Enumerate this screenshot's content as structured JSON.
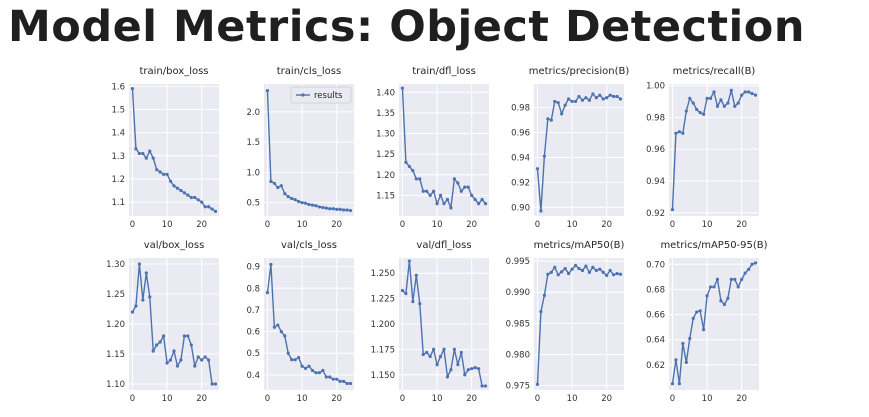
{
  "page": {
    "title": "Model Metrics: Object Detection"
  },
  "style": {
    "line_color": "#4c72b0",
    "panel_bg": "#eaeaf2",
    "grid_color": "#ffffff"
  },
  "legend": {
    "label": "results",
    "location": "upper right",
    "panel": "train/cls_loss"
  },
  "chart_data": [
    {
      "type": "line",
      "title": "train/box_loss",
      "xlim": [
        -1,
        25
      ],
      "ylim": [
        1.04,
        1.61
      ],
      "xticks": [
        0,
        10,
        20
      ],
      "yticks": [
        1.1,
        1.2,
        1.3,
        1.4,
        1.5,
        1.6
      ],
      "xtick_labels": [
        "0",
        "10",
        "20"
      ],
      "ytick_labels": [
        "1.1",
        "1.2",
        "1.3",
        "1.4",
        "1.5",
        "1.6"
      ],
      "x": [
        0,
        1,
        2,
        3,
        4,
        5,
        6,
        7,
        8,
        9,
        10,
        11,
        12,
        13,
        14,
        15,
        16,
        17,
        18,
        19,
        20,
        21,
        22,
        23,
        24
      ],
      "y": [
        1.59,
        1.33,
        1.31,
        1.31,
        1.29,
        1.32,
        1.29,
        1.24,
        1.23,
        1.22,
        1.22,
        1.19,
        1.17,
        1.16,
        1.15,
        1.14,
        1.13,
        1.12,
        1.12,
        1.11,
        1.1,
        1.08,
        1.08,
        1.07,
        1.06
      ]
    },
    {
      "type": "line",
      "title": "train/cls_loss",
      "xlim": [
        -1,
        25
      ],
      "ylim": [
        0.28,
        2.46
      ],
      "xticks": [
        0,
        10,
        20
      ],
      "yticks": [
        0.5,
        1.0,
        1.5,
        2.0
      ],
      "xtick_labels": [
        "0",
        "10",
        "20"
      ],
      "ytick_labels": [
        "0.5",
        "1.0",
        "1.5",
        "2.0"
      ],
      "x": [
        0,
        1,
        2,
        3,
        4,
        5,
        6,
        7,
        8,
        9,
        10,
        11,
        12,
        13,
        14,
        15,
        16,
        17,
        18,
        19,
        20,
        21,
        22,
        23,
        24
      ],
      "y": [
        2.35,
        0.85,
        0.82,
        0.75,
        0.78,
        0.65,
        0.6,
        0.57,
        0.55,
        0.52,
        0.5,
        0.49,
        0.47,
        0.46,
        0.45,
        0.43,
        0.42,
        0.41,
        0.4,
        0.4,
        0.39,
        0.39,
        0.38,
        0.38,
        0.37
      ]
    },
    {
      "type": "line",
      "title": "train/dfl_loss",
      "xlim": [
        -1,
        25
      ],
      "ylim": [
        1.1,
        1.42
      ],
      "xticks": [
        0,
        10,
        20
      ],
      "yticks": [
        1.15,
        1.2,
        1.25,
        1.3,
        1.35,
        1.4
      ],
      "xtick_labels": [
        "0",
        "10",
        "20"
      ],
      "ytick_labels": [
        "1.15",
        "1.20",
        "1.25",
        "1.30",
        "1.35",
        "1.40"
      ],
      "x": [
        0,
        1,
        2,
        3,
        4,
        5,
        6,
        7,
        8,
        9,
        10,
        11,
        12,
        13,
        14,
        15,
        16,
        17,
        18,
        19,
        20,
        21,
        22,
        23,
        24
      ],
      "y": [
        1.41,
        1.23,
        1.22,
        1.21,
        1.19,
        1.19,
        1.16,
        1.16,
        1.15,
        1.16,
        1.13,
        1.15,
        1.13,
        1.14,
        1.12,
        1.19,
        1.18,
        1.16,
        1.17,
        1.17,
        1.15,
        1.14,
        1.13,
        1.14,
        1.13
      ]
    },
    {
      "type": "line",
      "title": "metrics/precision(B)",
      "xlim": [
        -1,
        25
      ],
      "ylim": [
        0.893,
        0.999
      ],
      "xticks": [
        0,
        10,
        20
      ],
      "yticks": [
        0.9,
        0.92,
        0.94,
        0.96,
        0.98
      ],
      "xtick_labels": [
        "0",
        "10",
        "20"
      ],
      "ytick_labels": [
        "0.90",
        "0.92",
        "0.94",
        "0.96",
        "0.98"
      ],
      "x": [
        0,
        1,
        2,
        3,
        4,
        5,
        6,
        7,
        8,
        9,
        10,
        11,
        12,
        13,
        14,
        15,
        16,
        17,
        18,
        19,
        20,
        21,
        22,
        23,
        24
      ],
      "y": [
        0.931,
        0.897,
        0.941,
        0.971,
        0.97,
        0.985,
        0.984,
        0.975,
        0.982,
        0.987,
        0.985,
        0.985,
        0.989,
        0.986,
        0.988,
        0.986,
        0.991,
        0.988,
        0.99,
        0.987,
        0.988,
        0.99,
        0.989,
        0.989,
        0.987
      ]
    },
    {
      "type": "line",
      "title": "metrics/recall(B)",
      "xlim": [
        -1,
        25
      ],
      "ylim": [
        0.918,
        1.001
      ],
      "xticks": [
        0,
        10,
        20
      ],
      "yticks": [
        0.92,
        0.94,
        0.96,
        0.98,
        1.0
      ],
      "xtick_labels": [
        "0",
        "10",
        "20"
      ],
      "ytick_labels": [
        "0.92",
        "0.94",
        "0.96",
        "0.98",
        "1.00"
      ],
      "x": [
        0,
        1,
        2,
        3,
        4,
        5,
        6,
        7,
        8,
        9,
        10,
        11,
        12,
        13,
        14,
        15,
        16,
        17,
        18,
        19,
        20,
        21,
        22,
        23,
        24
      ],
      "y": [
        0.922,
        0.97,
        0.971,
        0.97,
        0.984,
        0.992,
        0.989,
        0.985,
        0.983,
        0.982,
        0.992,
        0.992,
        0.996,
        0.987,
        0.991,
        0.987,
        0.989,
        0.997,
        0.987,
        0.989,
        0.994,
        0.996,
        0.996,
        0.995,
        0.994
      ]
    },
    {
      "type": "line",
      "title": "val/box_loss",
      "xlim": [
        -1,
        25
      ],
      "ylim": [
        1.09,
        1.31
      ],
      "xticks": [
        0,
        10,
        20
      ],
      "yticks": [
        1.1,
        1.15,
        1.2,
        1.25,
        1.3
      ],
      "xtick_labels": [
        "0",
        "10",
        "20"
      ],
      "ytick_labels": [
        "1.10",
        "1.15",
        "1.20",
        "1.25",
        "1.30"
      ],
      "x": [
        0,
        1,
        2,
        3,
        4,
        5,
        6,
        7,
        8,
        9,
        10,
        11,
        12,
        13,
        14,
        15,
        16,
        17,
        18,
        19,
        20,
        21,
        22,
        23,
        24
      ],
      "y": [
        1.22,
        1.23,
        1.3,
        1.24,
        1.285,
        1.245,
        1.155,
        1.165,
        1.17,
        1.18,
        1.135,
        1.14,
        1.155,
        1.13,
        1.14,
        1.18,
        1.18,
        1.165,
        1.13,
        1.145,
        1.14,
        1.145,
        1.14,
        1.1,
        1.1
      ]
    },
    {
      "type": "line",
      "title": "val/cls_loss",
      "xlim": [
        -1,
        25
      ],
      "ylim": [
        0.33,
        0.94
      ],
      "xticks": [
        0,
        10,
        20
      ],
      "yticks": [
        0.4,
        0.5,
        0.6,
        0.7,
        0.8,
        0.9
      ],
      "xtick_labels": [
        "0",
        "10",
        "20"
      ],
      "ytick_labels": [
        "0.4",
        "0.5",
        "0.6",
        "0.7",
        "0.8",
        "0.9"
      ],
      "x": [
        0,
        1,
        2,
        3,
        4,
        5,
        6,
        7,
        8,
        9,
        10,
        11,
        12,
        13,
        14,
        15,
        16,
        17,
        18,
        19,
        20,
        21,
        22,
        23,
        24
      ],
      "y": [
        0.78,
        0.91,
        0.62,
        0.63,
        0.6,
        0.58,
        0.5,
        0.47,
        0.47,
        0.48,
        0.44,
        0.43,
        0.44,
        0.42,
        0.41,
        0.41,
        0.42,
        0.39,
        0.39,
        0.38,
        0.38,
        0.37,
        0.37,
        0.36,
        0.36
      ]
    },
    {
      "type": "line",
      "title": "val/dfl_loss",
      "xlim": [
        -1,
        25
      ],
      "ylim": [
        1.135,
        1.265
      ],
      "xticks": [
        0,
        10,
        20
      ],
      "yticks": [
        1.15,
        1.175,
        1.2,
        1.225,
        1.25
      ],
      "xtick_labels": [
        "0",
        "10",
        "20"
      ],
      "ytick_labels": [
        "1.150",
        "1.175",
        "1.200",
        "1.225",
        "1.250"
      ],
      "x": [
        0,
        1,
        2,
        3,
        4,
        5,
        6,
        7,
        8,
        9,
        10,
        11,
        12,
        13,
        14,
        15,
        16,
        17,
        18,
        19,
        20,
        21,
        22,
        23,
        24
      ],
      "y": [
        1.233,
        1.23,
        1.262,
        1.222,
        1.248,
        1.22,
        1.17,
        1.172,
        1.168,
        1.175,
        1.16,
        1.168,
        1.175,
        1.148,
        1.155,
        1.175,
        1.16,
        1.172,
        1.15,
        1.155,
        1.156,
        1.157,
        1.156,
        1.139,
        1.139
      ]
    },
    {
      "type": "line",
      "title": "metrics/mAP50(B)",
      "xlim": [
        -1,
        25
      ],
      "ylim": [
        0.9743,
        0.9955
      ],
      "xticks": [
        0,
        10,
        20
      ],
      "yticks": [
        0.975,
        0.98,
        0.985,
        0.99,
        0.995
      ],
      "xtick_labels": [
        "0",
        "10",
        "20"
      ],
      "ytick_labels": [
        "0.975",
        "0.980",
        "0.985",
        "0.990",
        "0.995"
      ],
      "x": [
        0,
        1,
        2,
        3,
        4,
        5,
        6,
        7,
        8,
        9,
        10,
        11,
        12,
        13,
        14,
        15,
        16,
        17,
        18,
        19,
        20,
        21,
        22,
        23,
        24
      ],
      "y": [
        0.9752,
        0.9869,
        0.9895,
        0.9929,
        0.9932,
        0.994,
        0.9928,
        0.9933,
        0.9938,
        0.993,
        0.9937,
        0.9943,
        0.9938,
        0.9935,
        0.9942,
        0.9932,
        0.994,
        0.9935,
        0.9937,
        0.9932,
        0.9927,
        0.9935,
        0.9928,
        0.993,
        0.9929
      ]
    },
    {
      "type": "line",
      "title": "metrics/mAP50-95(B)",
      "xlim": [
        -1,
        25
      ],
      "ylim": [
        0.6,
        0.705
      ],
      "xticks": [
        0,
        10,
        20
      ],
      "yticks": [
        0.62,
        0.64,
        0.66,
        0.68,
        0.7
      ],
      "xtick_labels": [
        "0",
        "10",
        "20"
      ],
      "ytick_labels": [
        "0.62",
        "0.64",
        "0.66",
        "0.68",
        "0.70"
      ],
      "x": [
        0,
        1,
        2,
        3,
        4,
        5,
        6,
        7,
        8,
        9,
        10,
        11,
        12,
        13,
        14,
        15,
        16,
        17,
        18,
        19,
        20,
        21,
        22,
        23,
        24
      ],
      "y": [
        0.605,
        0.624,
        0.605,
        0.637,
        0.622,
        0.641,
        0.657,
        0.662,
        0.663,
        0.648,
        0.675,
        0.682,
        0.682,
        0.688,
        0.671,
        0.668,
        0.673,
        0.688,
        0.688,
        0.682,
        0.688,
        0.693,
        0.696,
        0.7,
        0.701
      ]
    }
  ]
}
